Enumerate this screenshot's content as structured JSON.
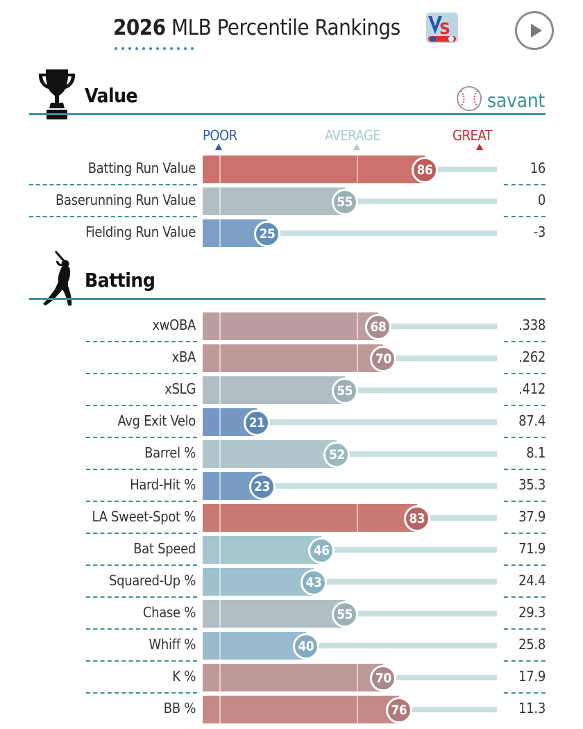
{
  "header": {
    "title_year": "2026",
    "title_rest": " MLB Percentile Rankings",
    "vs_logo_icon": "vs-logo-icon",
    "play_icon": "play-icon"
  },
  "scale": {
    "poor": "POOR",
    "average": "AVERAGE",
    "great": "GREAT"
  },
  "colors": {
    "teal": "#3d8f98",
    "poor": "#2c5eaa",
    "average": "#9fcbce",
    "great": "#d62828"
  },
  "sections": [
    {
      "title": "Value",
      "icon": "trophy-icon",
      "logo": "savant",
      "logo_icon": "baseball-icon",
      "metrics": [
        {
          "label": "Batting Run Value",
          "percentile": 86,
          "value": "16"
        },
        {
          "label": "Baserunning Run Value",
          "percentile": 55,
          "value": "0"
        },
        {
          "label": "Fielding Run Value",
          "percentile": 25,
          "value": "-3"
        }
      ]
    },
    {
      "title": "Batting",
      "icon": "batter-silhouette-icon",
      "metrics": [
        {
          "label": "xwOBA",
          "percentile": 68,
          "value": ".338"
        },
        {
          "label": "xBA",
          "percentile": 70,
          "value": ".262"
        },
        {
          "label": "xSLG",
          "percentile": 55,
          "value": ".412"
        },
        {
          "label": "Avg Exit Velo",
          "percentile": 21,
          "value": "87.4"
        },
        {
          "label": "Barrel %",
          "percentile": 52,
          "value": "8.1"
        },
        {
          "label": "Hard-Hit %",
          "percentile": 23,
          "value": "35.3"
        },
        {
          "label": "LA Sweet-Spot %",
          "percentile": 83,
          "value": "37.9"
        },
        {
          "label": "Bat Speed",
          "percentile": 46,
          "value": "71.9"
        },
        {
          "label": "Squared-Up %",
          "percentile": 43,
          "value": "24.4"
        },
        {
          "label": "Chase %",
          "percentile": 55,
          "value": "29.3"
        },
        {
          "label": "Whiff %",
          "percentile": 40,
          "value": "25.8"
        },
        {
          "label": "K %",
          "percentile": 70,
          "value": "17.9"
        },
        {
          "label": "BB %",
          "percentile": 76,
          "value": "11.3"
        }
      ]
    }
  ]
}
